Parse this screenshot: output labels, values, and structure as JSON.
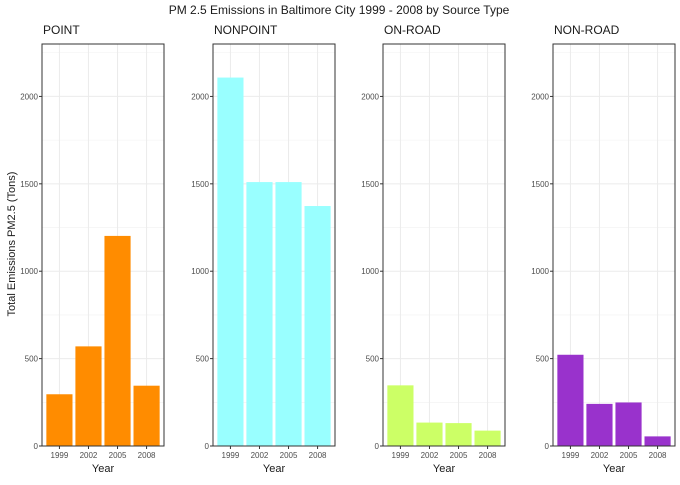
{
  "chart_data": {
    "type": "bar",
    "title": "PM 2.5 Emissions in Baltimore City 1999 - 2008 by Source Type",
    "xlabel": "Year",
    "ylabel": "Total Emissions PM2.5 (Tons)",
    "categories": [
      "1999",
      "2002",
      "2005",
      "2008"
    ],
    "ylim": [
      0,
      2300
    ],
    "yticks": [
      0,
      500,
      1000,
      1500,
      2000
    ],
    "grid": true,
    "legend": "none",
    "panels": [
      {
        "name": "POINT",
        "color": "#FF8C00",
        "values": [
          296,
          570,
          1202,
          345
        ]
      },
      {
        "name": "NONPOINT",
        "color": "#99FFFF",
        "values": [
          2108,
          1510,
          1510,
          1373
        ]
      },
      {
        "name": "ON-ROAD",
        "color": "#CCFF66",
        "values": [
          347,
          134,
          131,
          88
        ]
      },
      {
        "name": "NON-ROAD",
        "color": "#9932CC",
        "values": [
          522,
          241,
          249,
          55
        ]
      }
    ]
  }
}
